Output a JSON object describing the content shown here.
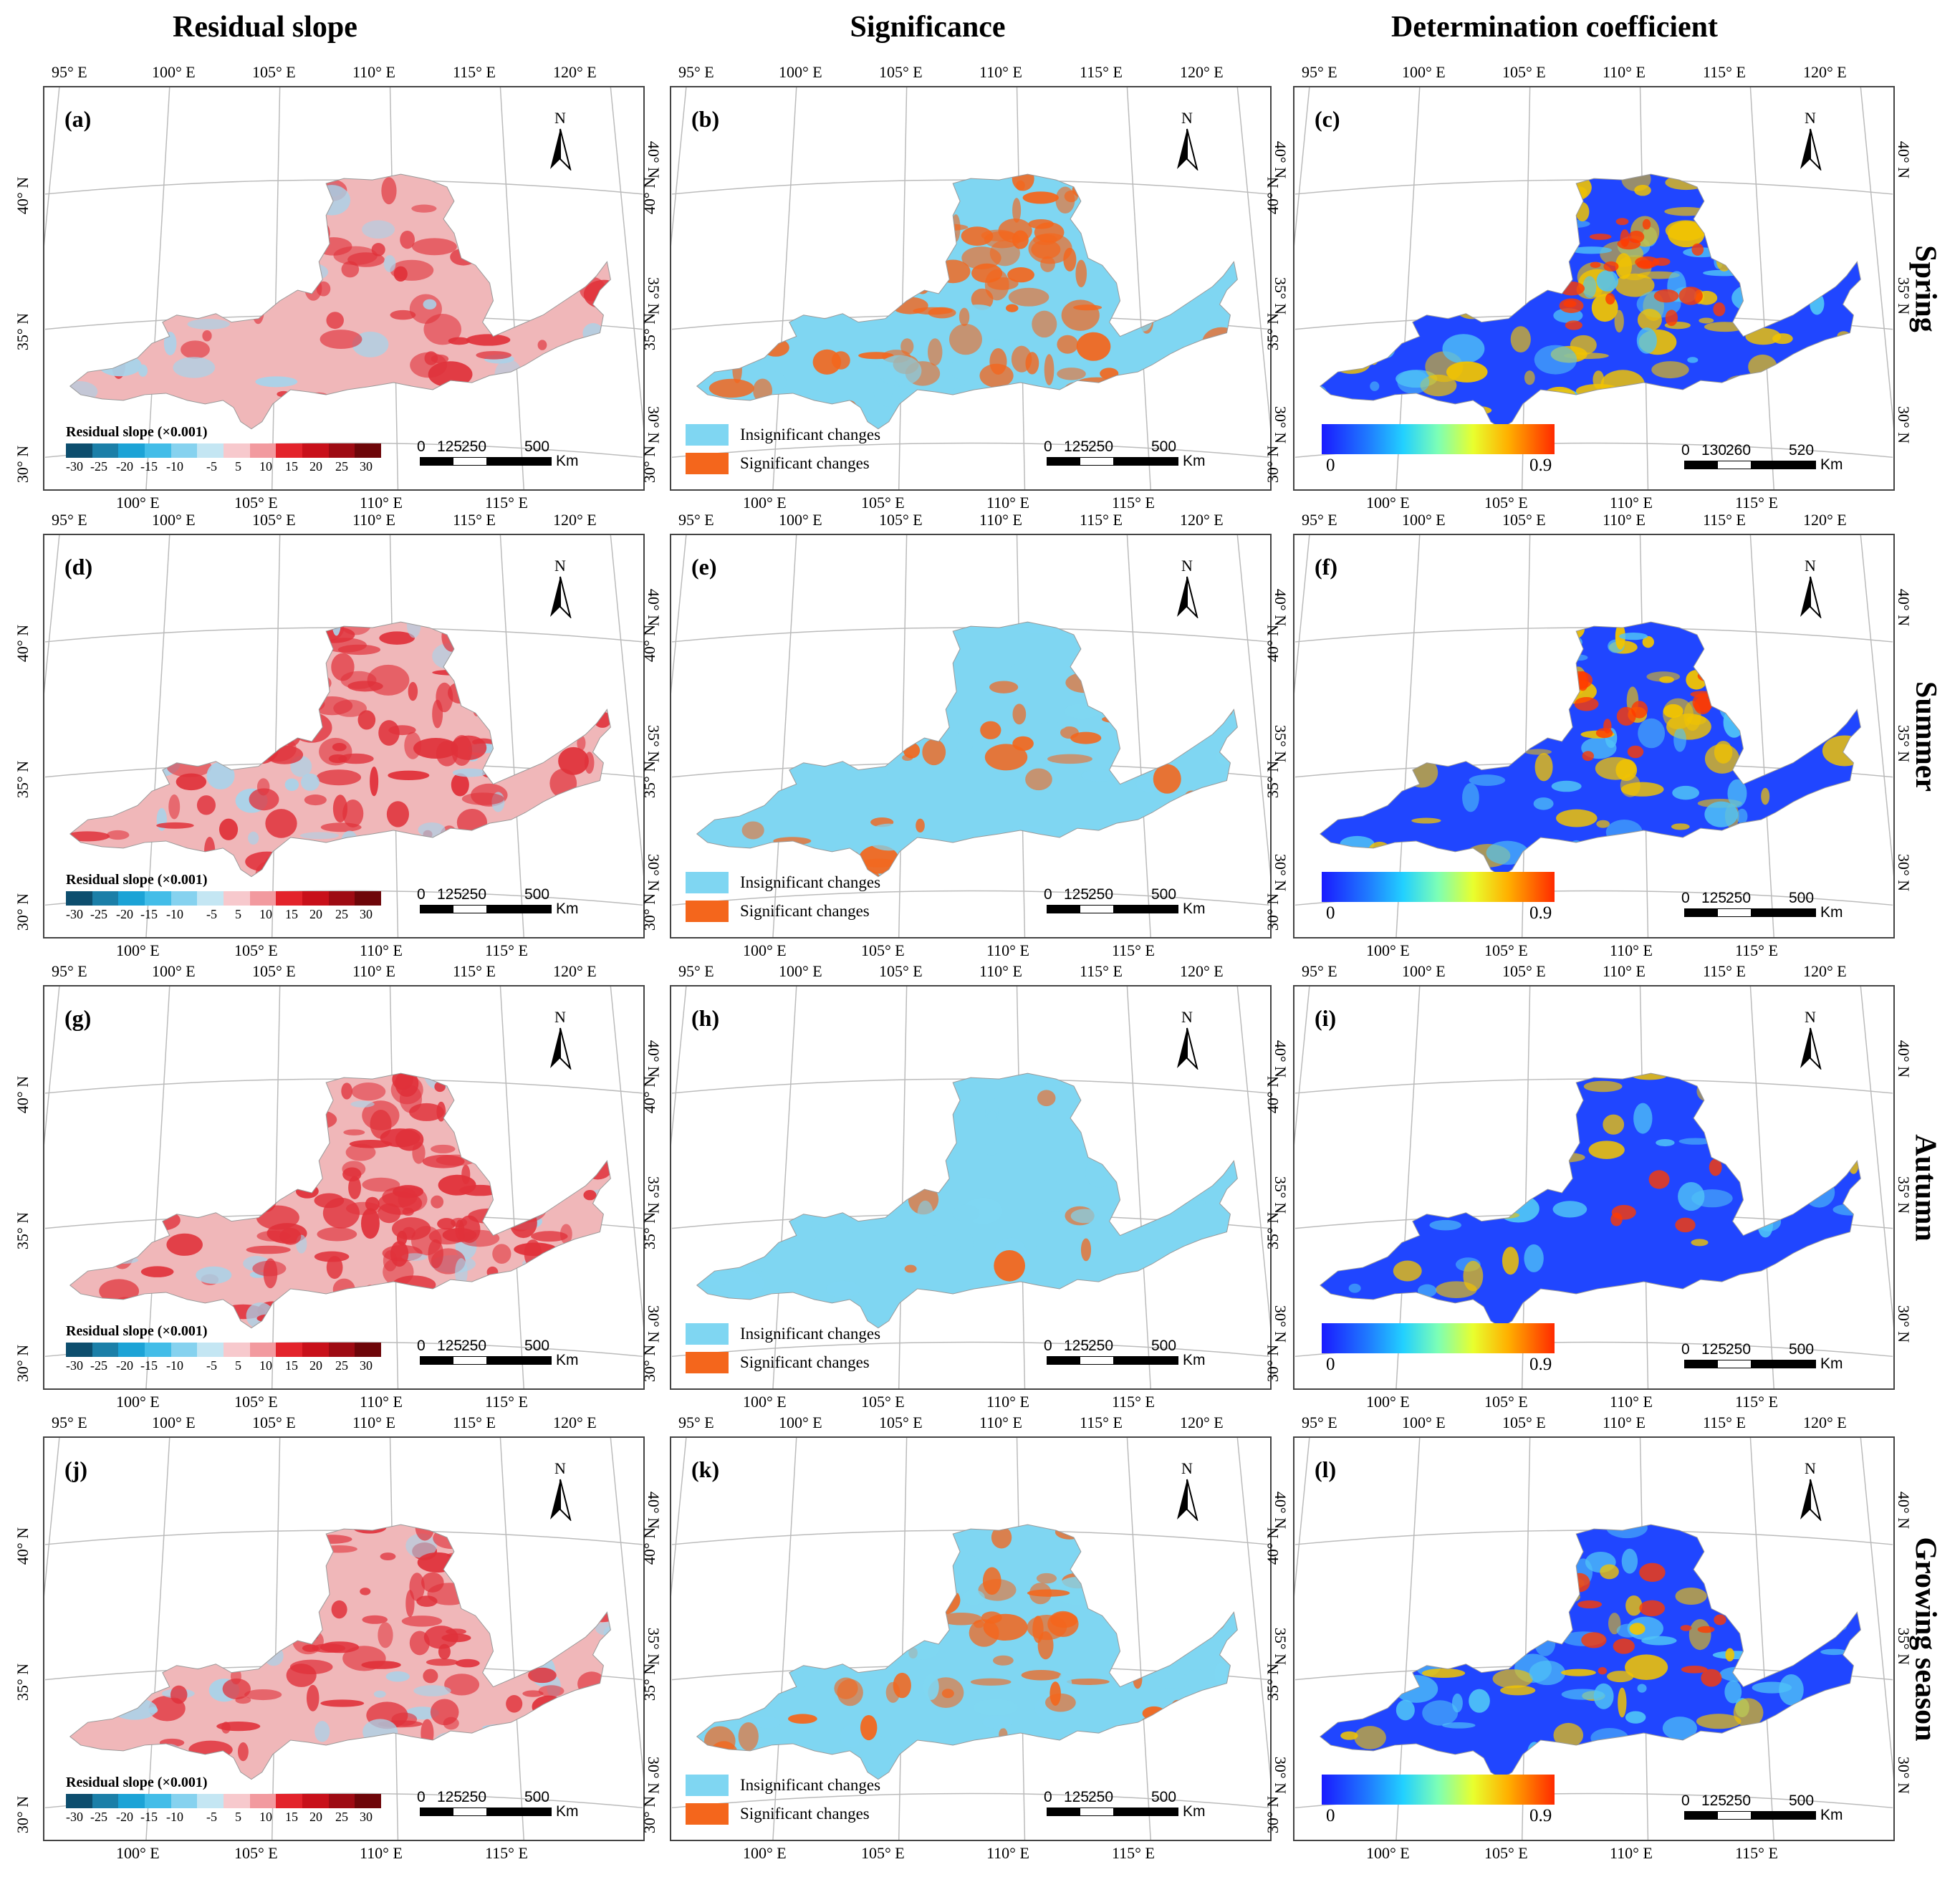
{
  "columns": [
    "Residual slope",
    "Significance",
    "Determination coefficient"
  ],
  "rows": [
    "Spring",
    "Summer",
    "Autumn",
    "Growing season"
  ],
  "panel_labels": [
    "(a)",
    "(b)",
    "(c)",
    "(d)",
    "(e)",
    "(f)",
    "(g)",
    "(h)",
    "(i)",
    "(j)",
    "(k)",
    "(l)"
  ],
  "north_label": "N",
  "top_ticks": [
    "95° E",
    "100° E",
    "105° E",
    "110° E",
    "115° E",
    "120° E"
  ],
  "bottom_ticks": [
    "100° E",
    "105° E",
    "110° E",
    "115° E"
  ],
  "left_ticks": [
    "40° N",
    "35° N",
    "30° N"
  ],
  "right_ticks": [
    "40° N",
    "35° N",
    "30° N"
  ],
  "scalebar": {
    "nums": [
      "0",
      "125",
      "250",
      "500"
    ],
    "nums_alt": [
      "0",
      "130",
      "260",
      "520"
    ],
    "unit": "Km"
  },
  "residual_legend": {
    "title": "Residual slope (×0.001)",
    "labels": [
      "-30",
      "-25",
      "-20",
      "-15",
      "-10",
      "-5",
      "5",
      "10",
      "15",
      "20",
      "25",
      "30"
    ],
    "colors": [
      "#0d4e6e",
      "#1b7fa8",
      "#1ca3d6",
      "#43bde8",
      "#86d2ef",
      "#c4e6f3",
      "#f7c9cd",
      "#f29a9f",
      "#e3232b",
      "#c8101a",
      "#9e0b13",
      "#6e0609"
    ]
  },
  "significance_legend": {
    "items": [
      {
        "label": "Insignificant changes",
        "color": "#7fd6f2"
      },
      {
        "label": "Significant changes",
        "color": "#f4661c"
      }
    ]
  },
  "r2_legend": {
    "min": "0",
    "max": "0.9"
  },
  "colors": {
    "residual_base": "#f0b7b9",
    "residual_strong": "#e0313a",
    "residual_cool": "#a8d3ea",
    "insignificant": "#7fd6f2",
    "significant": "#f4661c",
    "r2_low": "#2046ff",
    "r2_mid": "#4fc3f7",
    "r2_high": "#f2c400",
    "r2_peak": "#ff3a00"
  },
  "panel_patterns": {
    "residual": [
      0.35,
      0.75,
      0.85,
      0.78
    ],
    "significance": [
      0.65,
      0.35,
      0.06,
      0.38
    ],
    "r2": [
      0.55,
      0.35,
      0.12,
      0.3
    ]
  }
}
